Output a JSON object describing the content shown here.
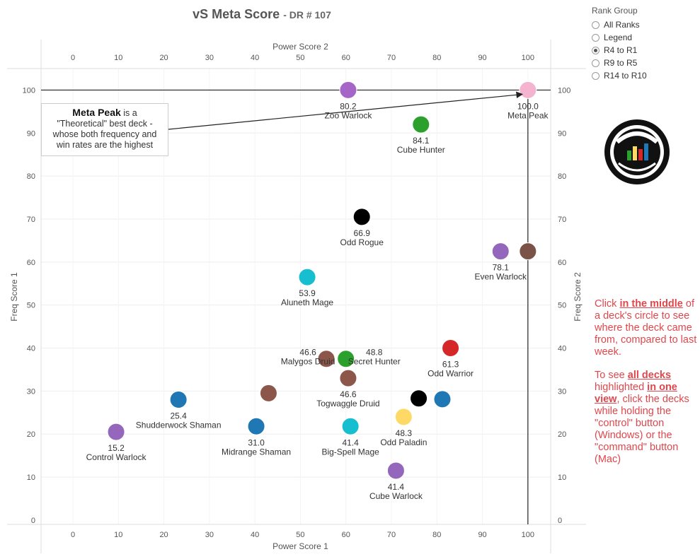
{
  "header": {
    "title": "vS Meta Score",
    "subtitle": "- DR # 107"
  },
  "rank_group": {
    "title": "Rank Group",
    "options": [
      {
        "label": "All Ranks",
        "selected": false
      },
      {
        "label": "Legend",
        "selected": false
      },
      {
        "label": "R4 to R1",
        "selected": true
      },
      {
        "label": "R9 to R5",
        "selected": false
      },
      {
        "label": "R14 to R10",
        "selected": false
      }
    ]
  },
  "callout": {
    "bold": "Meta Peak",
    "line1": "is a",
    "line2": "\"Theoretical\" best deck -",
    "line3": "whose both frequency and",
    "line4": "win rates are the highest"
  },
  "instructions": {
    "p1_pre": "Click ",
    "p1_bold": "in the middle",
    "p1_post": " of a deck's circle to see where the deck came from, compared to last week.",
    "p2_pre": "To see ",
    "p2_bold1": "all decks",
    "p2_mid": " highlighted ",
    "p2_bold2": "in one view",
    "p2_post": ", click the decks while holding the \"control\" button (Windows) or the \"command\" button (Mac)"
  },
  "chart_data": {
    "type": "scatter",
    "xlabel_top": "Power Score 2",
    "xlabel_bottom": "Power Score 1",
    "ylabel_left": "Freq Score 1",
    "ylabel_right": "Freq Score 2",
    "xlim": [
      -7,
      105
    ],
    "ylim": [
      -1,
      105
    ],
    "x_ticks": [
      0,
      10,
      20,
      30,
      40,
      50,
      60,
      70,
      80,
      90,
      100
    ],
    "y_ticks": [
      0,
      10,
      20,
      30,
      40,
      50,
      60,
      70,
      80,
      90,
      100
    ],
    "reference_lines": {
      "x": 100,
      "y": 100
    },
    "points": [
      {
        "name": "Meta Peak",
        "score": "100.0",
        "x": 100,
        "y": 100,
        "color": "#f4b3cf",
        "label_pos": "below"
      },
      {
        "name": "Zoo Warlock",
        "score": "80.2",
        "x": 60.5,
        "y": 100,
        "color": "#a566c8",
        "label_pos": "below"
      },
      {
        "name": "Cube Hunter",
        "score": "84.1",
        "x": 76.5,
        "y": 92,
        "color": "#2ca02c",
        "label_pos": "below"
      },
      {
        "name": "Odd Rogue",
        "score": "66.9",
        "x": 63.5,
        "y": 70.5,
        "color": "#000000",
        "label_pos": "below"
      },
      {
        "name": "Even Warlock",
        "score": "78.1",
        "x": 94,
        "y": 62.5,
        "color": "#9467bd",
        "label_pos": "below"
      },
      {
        "name": "",
        "score": "",
        "x": 100,
        "y": 62.5,
        "color": "#7a5247",
        "label_pos": "none"
      },
      {
        "name": "Aluneth Mage",
        "score": "53.9",
        "x": 51.5,
        "y": 56.5,
        "color": "#17becf",
        "label_pos": "below"
      },
      {
        "name": "Malygos Druid",
        "score": "46.6",
        "x": 55.7,
        "y": 37.5,
        "color": "#8c564b",
        "label_pos": "left"
      },
      {
        "name": "Secret Hunter",
        "score": "48.8",
        "x": 60,
        "y": 37.5,
        "color": "#2ca02c",
        "label_pos": "right"
      },
      {
        "name": "Odd Warrior",
        "score": "61.3",
        "x": 83,
        "y": 40,
        "color": "#d62728",
        "label_pos": "below"
      },
      {
        "name": "Togwaggle Druid",
        "score": "46.6",
        "x": 60.5,
        "y": 33,
        "color": "#8c564b",
        "label_pos": "below"
      },
      {
        "name": "",
        "score": "",
        "x": 43,
        "y": 29.5,
        "color": "#8c564b",
        "label_pos": "none"
      },
      {
        "name": "Shudderwock Shaman",
        "score": "25.4",
        "x": 23.2,
        "y": 28,
        "color": "#1f77b4",
        "label_pos": "below"
      },
      {
        "name": "Odd Paladin",
        "score": "48.3",
        "x": 72.7,
        "y": 24,
        "color": "#ffd966",
        "label_pos": "below"
      },
      {
        "name": "",
        "score": "",
        "x": 76,
        "y": 28.3,
        "color": "#000000",
        "label_pos": "none"
      },
      {
        "name": "",
        "score": "",
        "x": 81.2,
        "y": 28.1,
        "color": "#1f77b4",
        "label_pos": "none"
      },
      {
        "name": "Control Warlock",
        "score": "15.2",
        "x": 9.5,
        "y": 20.5,
        "color": "#9467bd",
        "label_pos": "below"
      },
      {
        "name": "Midrange Shaman",
        "score": "31.0",
        "x": 40.3,
        "y": 21.8,
        "color": "#1f77b4",
        "label_pos": "below"
      },
      {
        "name": "Big-Spell Mage",
        "score": "41.4",
        "x": 61,
        "y": 21.8,
        "color": "#17becf",
        "label_pos": "below"
      },
      {
        "name": "Cube Warlock",
        "score": "41.4",
        "x": 71,
        "y": 11.5,
        "color": "#9467bd",
        "label_pos": "below"
      }
    ]
  }
}
